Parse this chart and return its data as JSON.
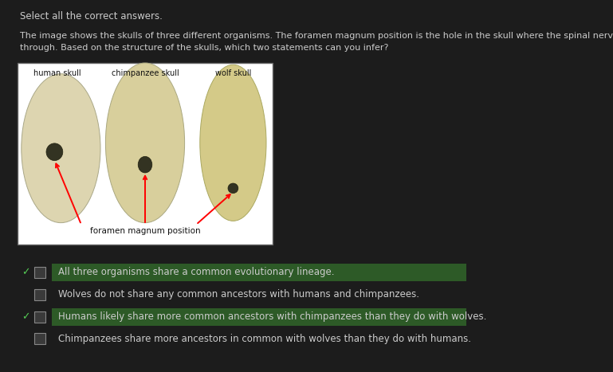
{
  "background_color": "#1c1c1c",
  "header_text": "Select all the correct answers.",
  "body_text_line1": "The image shows the skulls of three different organisms. The foramen magnum position is the hole in the skull where the spinal nerve cord passes",
  "body_text_line2": "through. Based on the structure of the skulls, which two statements can you infer?",
  "skull_labels": [
    "human skull",
    "chimpanzee skull",
    "wolf skull"
  ],
  "foramen_label": "foramen magnum position",
  "answers": [
    {
      "text": "All three organisms share a common evolutionary lineage.",
      "checked": true,
      "highlight": "#2d5a27"
    },
    {
      "text": "Wolves do not share any common ancestors with humans and chimpanzees.",
      "checked": false,
      "highlight": null
    },
    {
      "text": "Humans likely share more common ancestors with chimpanzees than they do with wolves.",
      "checked": true,
      "highlight": "#2d5a27"
    },
    {
      "text": "Chimpanzees share more ancestors in common with wolves than they do with humans.",
      "checked": false,
      "highlight": null
    }
  ],
  "text_color": "#cccccc",
  "check_color": "#55cc55",
  "checkbox_border": "#888888",
  "checkbox_fill": "#3a3a3a",
  "image_bg": "#ffffff",
  "skull_img_color": "#e8dfc0",
  "font_size_header": 8.5,
  "font_size_body": 8.0,
  "font_size_answer": 8.5,
  "font_size_skull_label": 7.0,
  "font_size_foramen": 7.5
}
